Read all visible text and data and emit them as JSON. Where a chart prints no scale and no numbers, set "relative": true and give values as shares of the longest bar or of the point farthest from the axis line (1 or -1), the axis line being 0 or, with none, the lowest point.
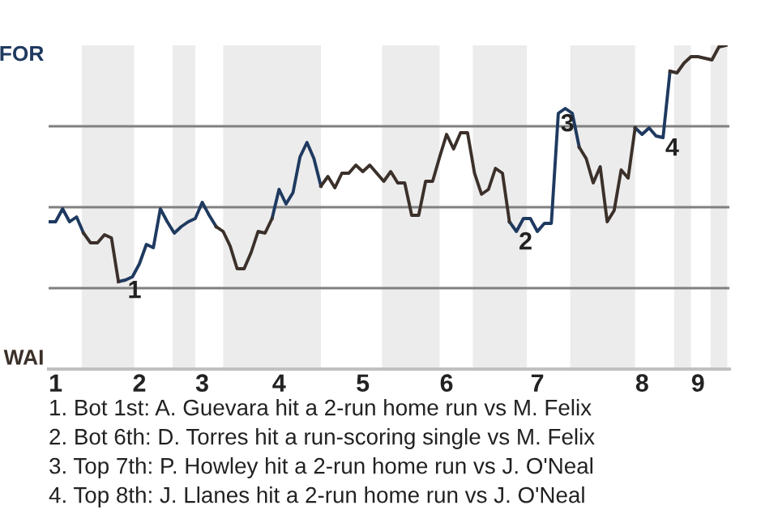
{
  "chart_data": {
    "type": "line",
    "relative": true,
    "categories": [
      null,
      "1",
      null,
      null,
      null,
      null,
      null,
      null,
      null,
      null,
      null,
      null,
      null,
      "2",
      null,
      null,
      null,
      null,
      null,
      null,
      null,
      null,
      "3",
      null,
      null,
      null,
      null,
      null,
      null,
      null,
      null,
      null,
      null,
      "4",
      null,
      null,
      null,
      null,
      null,
      null,
      null,
      null,
      null,
      null,
      null,
      "5",
      null,
      null,
      null,
      null,
      null,
      null,
      null,
      null,
      null,
      null,
      null,
      "6",
      null,
      null,
      null,
      null,
      null,
      null,
      null,
      null,
      null,
      null,
      null,
      null,
      "7",
      null,
      null,
      null,
      null,
      null,
      null,
      null,
      null,
      null,
      null,
      null,
      null,
      null,
      null,
      "8",
      null,
      null,
      null,
      null,
      null,
      null,
      null,
      "9",
      null,
      null,
      null,
      null
    ],
    "series": [
      {
        "color": "#1f3a60",
        "values": [
          0.455,
          0.455,
          0.495,
          0.455,
          0.47,
          0.42,
          null,
          null,
          null,
          null,
          0.27,
          0.275,
          0.285,
          0.325,
          0.385,
          0.375,
          0.495,
          0.455,
          0.42,
          0.44,
          0.455,
          0.465,
          0.515,
          0.475,
          0.44,
          null,
          null,
          null,
          null,
          null,
          null,
          null,
          0.465,
          0.555,
          0.51,
          0.545,
          0.655,
          0.7,
          0.65,
          0.565,
          null,
          null,
          null,
          null,
          null,
          null,
          null,
          null,
          null,
          null,
          null,
          null,
          null,
          null,
          null,
          null,
          null,
          null,
          null,
          null,
          null,
          null,
          null,
          null,
          null,
          null,
          0.455,
          0.425,
          0.465,
          0.465,
          0.425,
          0.45,
          0.45,
          0.79,
          0.805,
          0.79,
          0.685,
          null,
          null,
          null,
          null,
          null,
          null,
          null,
          0.745,
          0.725,
          0.745,
          0.72,
          0.715,
          0.92,
          null,
          null,
          null,
          null,
          null,
          null,
          null,
          null
        ]
      },
      {
        "color": "#3b302a",
        "values": [
          null,
          null,
          null,
          null,
          null,
          0.42,
          0.39,
          0.39,
          0.415,
          0.405,
          0.27,
          null,
          null,
          null,
          null,
          null,
          null,
          null,
          null,
          null,
          null,
          null,
          null,
          null,
          0.44,
          0.425,
          0.38,
          0.31,
          0.31,
          0.36,
          0.425,
          0.42,
          0.465,
          null,
          null,
          null,
          null,
          null,
          null,
          0.565,
          0.595,
          0.56,
          0.605,
          0.605,
          0.63,
          0.61,
          0.63,
          0.605,
          0.58,
          0.61,
          0.575,
          0.575,
          0.475,
          0.475,
          0.58,
          0.58,
          0.655,
          0.725,
          0.68,
          0.73,
          0.73,
          0.605,
          0.54,
          0.555,
          0.62,
          0.605,
          0.455,
          null,
          null,
          null,
          null,
          null,
          null,
          null,
          null,
          null,
          0.685,
          0.65,
          0.575,
          0.625,
          0.455,
          0.49,
          0.615,
          0.59,
          0.745,
          null,
          null,
          null,
          null,
          0.92,
          0.915,
          0.945,
          0.965,
          0.965,
          0.96,
          0.955,
          0.995,
          1
        ]
      }
    ],
    "ref_lines": [
      {
        "axis": "y",
        "value": 0.25,
        "color": "#808080"
      },
      {
        "axis": "y",
        "value": 0.5,
        "color": "#808080"
      },
      {
        "axis": "y",
        "value": 0.75,
        "color": "#808080"
      }
    ],
    "annotations": [
      "FOR",
      "WAI",
      {
        "text": "1",
        "y": 0.275
      },
      {
        "text": "2",
        "y": 0.425
      },
      {
        "text": "3",
        "y": 0.79
      },
      {
        "text": "4",
        "y": 0.715
      },
      "1. Bot 1st: A. Guevara hit a 2-run home run vs M. Felix",
      "2. Bot 6th: D. Torres hit a run-scoring single vs M. Felix",
      "3. Top 7th: P. Howley hit a 2-run home run vs J. O'Neal",
      "4. Top 8th: J. Llanes hit a 2-run home run vs J. O'Neal"
    ],
    "tick_labels": "x",
    "line_style": "solid",
    "marker": "none"
  }
}
